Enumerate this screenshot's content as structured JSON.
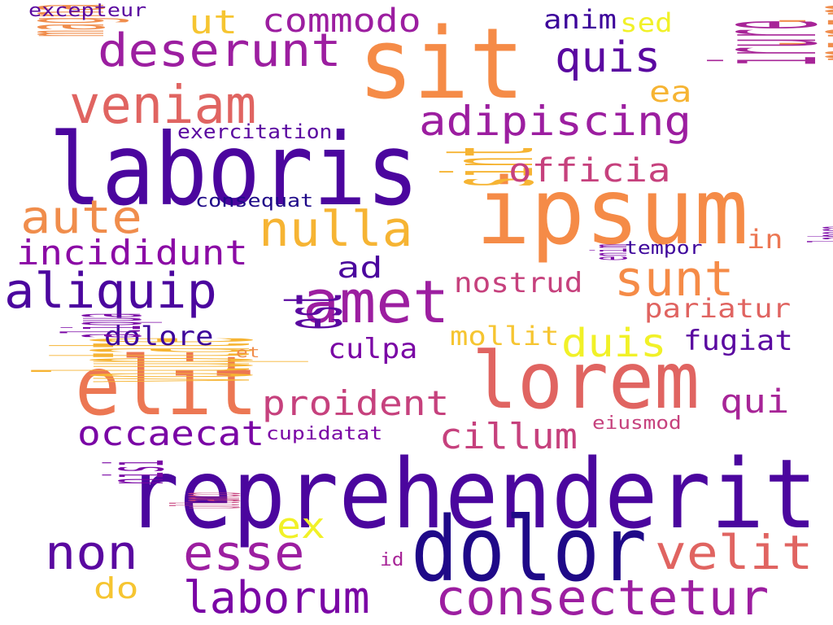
{
  "words": [
    {
      "text": "reprehenderit",
      "color": "#4b069e"
    },
    {
      "text": "laboris",
      "color": "#4b069e"
    },
    {
      "text": "ipsum",
      "color": "#f58b47"
    },
    {
      "text": "sit",
      "color": "#f58b47"
    },
    {
      "text": "dolor",
      "color": "#1f0988"
    },
    {
      "text": "lorem",
      "color": "#e06461"
    },
    {
      "text": "elit",
      "color": "#ec7753"
    },
    {
      "text": "minim",
      "color": "#f08d4c"
    },
    {
      "text": "amet",
      "color": "#9c1ea0"
    },
    {
      "text": "consectetur",
      "color": "#9c1ea0"
    },
    {
      "text": "deserunt",
      "color": "#9c1ea0"
    },
    {
      "text": "veniam",
      "color": "#e06461"
    },
    {
      "text": "voluptate",
      "color": "#f6b433"
    },
    {
      "text": "esse",
      "color": "#9c1ea0"
    },
    {
      "text": "velit",
      "color": "#e06461"
    },
    {
      "text": "aliquip",
      "color": "#4b069e"
    },
    {
      "text": "non",
      "color": "#5a08a0"
    },
    {
      "text": "nulla",
      "color": "#f6b433"
    },
    {
      "text": "adipiscing",
      "color": "#9c1ea0"
    },
    {
      "text": "irure",
      "color": "#a72497"
    },
    {
      "text": "sunt",
      "color": "#f58b47"
    },
    {
      "text": "aute",
      "color": "#f08d4c"
    },
    {
      "text": "laborum",
      "color": "#7a05a5"
    },
    {
      "text": "sint",
      "color": "#f6b433"
    },
    {
      "text": "duis",
      "color": "#f1f128"
    },
    {
      "text": "ut",
      "color": "#f6c531"
    },
    {
      "text": "commodo",
      "color": "#9c1ea0"
    },
    {
      "text": "quis",
      "color": "#5a08a0"
    },
    {
      "text": "proident",
      "color": "#c6417d"
    },
    {
      "text": "incididunt",
      "color": "#8b0aa5"
    },
    {
      "text": "est",
      "color": "#5a08a0"
    },
    {
      "text": "occaecat",
      "color": "#7a05a5"
    },
    {
      "text": "cillum",
      "color": "#c6417d"
    },
    {
      "text": "ex",
      "color": "#f1f128"
    },
    {
      "text": "officia",
      "color": "#c6417d"
    },
    {
      "text": "magna",
      "color": "#f08d4c"
    },
    {
      "text": "ea",
      "color": "#f6b433"
    },
    {
      "text": "nostrud",
      "color": "#c6417d"
    },
    {
      "text": "qui",
      "color": "#a72497"
    },
    {
      "text": "pariatur",
      "color": "#e06461"
    },
    {
      "text": "ad",
      "color": "#4b069e"
    },
    {
      "text": "culpa",
      "color": "#7a05a5"
    },
    {
      "text": "fugiat",
      "color": "#5a08a0"
    },
    {
      "text": "dolore",
      "color": "#3d049b"
    },
    {
      "text": "mollit",
      "color": "#f6c531"
    },
    {
      "text": "aliqua",
      "color": "#7a05a5"
    },
    {
      "text": "do",
      "color": "#f6c531"
    },
    {
      "text": "nisi",
      "color": "#7a05a5"
    },
    {
      "text": "anim",
      "color": "#3d049b"
    },
    {
      "text": "sed",
      "color": "#f1f128"
    },
    {
      "text": "in",
      "color": "#ec7753"
    },
    {
      "text": "exercitation",
      "color": "#5a08a0"
    },
    {
      "text": "consequat",
      "color": "#1f0988"
    },
    {
      "text": "cupidatat",
      "color": "#7a05a5"
    },
    {
      "text": "eiusmod",
      "color": "#c6417d"
    },
    {
      "text": "tempor",
      "color": "#3d049b"
    },
    {
      "text": "excepteur",
      "color": "#5a08a0"
    },
    {
      "text": "ullamco",
      "color": "#c6417d"
    },
    {
      "text": "labore",
      "color": "#7a05a5"
    },
    {
      "text": "enim",
      "color": "#7a05a5"
    },
    {
      "text": "et",
      "color": "#f08d4c"
    },
    {
      "text": "id",
      "color": "#a72497"
    }
  ]
}
